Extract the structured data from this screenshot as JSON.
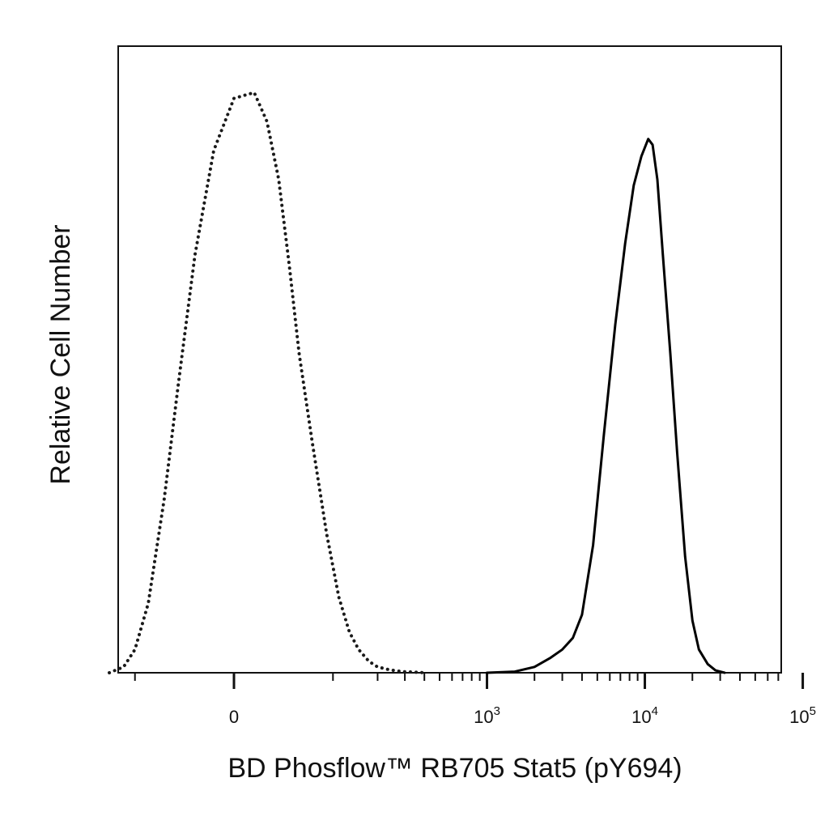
{
  "chart_data": {
    "type": "line",
    "title": "",
    "xlabel": "BD Phosflow™ RB705 Stat5 (pY694)",
    "ylabel": "Relative Cell Number",
    "x_scale": "biexponential",
    "xlim": [
      -300,
      200000
    ],
    "ylim": [
      0,
      1.08
    ],
    "grid": false,
    "legend": "none",
    "x_ticks": [
      {
        "value": 0,
        "base": "0",
        "exponent": ""
      },
      {
        "value": 1000,
        "base": "10",
        "exponent": "3"
      },
      {
        "value": 10000,
        "base": "10",
        "exponent": "4"
      },
      {
        "value": 100000,
        "base": "10",
        "exponent": "5"
      }
    ],
    "series": [
      {
        "style": "dotted",
        "color": "#1a1a1a",
        "x": [
          -150,
          -120,
          -100,
          -80,
          -60,
          -45,
          -30,
          -15,
          0,
          15,
          25,
          35,
          45,
          55,
          70,
          90,
          110,
          130,
          150,
          175,
          200,
          240,
          290,
          350,
          400
        ],
        "y": [
          0.0,
          0.01,
          0.04,
          0.12,
          0.3,
          0.5,
          0.72,
          0.9,
          0.99,
          1.0,
          0.95,
          0.85,
          0.7,
          0.55,
          0.4,
          0.24,
          0.13,
          0.07,
          0.04,
          0.02,
          0.01,
          0.005,
          0.002,
          0.001,
          0.0
        ]
      },
      {
        "style": "solid",
        "color": "#000000",
        "x": [
          1000,
          1500,
          2000,
          2500,
          3000,
          3500,
          4000,
          4700,
          5500,
          6500,
          7500,
          8500,
          9500,
          10500,
          11200,
          12000,
          13000,
          14500,
          16000,
          18000,
          20000,
          22000,
          25000,
          28000,
          32000
        ],
        "y": [
          0.0,
          0.002,
          0.01,
          0.025,
          0.04,
          0.06,
          0.1,
          0.22,
          0.41,
          0.6,
          0.74,
          0.84,
          0.89,
          0.92,
          0.91,
          0.85,
          0.72,
          0.55,
          0.38,
          0.2,
          0.09,
          0.04,
          0.015,
          0.004,
          0.0
        ]
      }
    ],
    "colors": {
      "axis": "#111111",
      "background": "#ffffff"
    }
  }
}
